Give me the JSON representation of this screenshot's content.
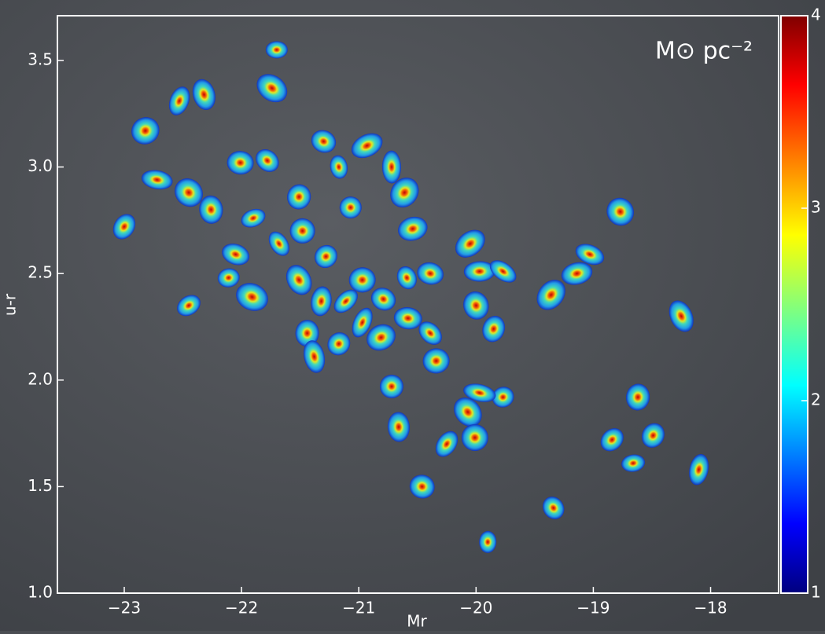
{
  "chart_data": {
    "type": "scatter",
    "annotation": "M⊙ pc⁻²",
    "x_label": "Mr",
    "y_label": "u-r",
    "x": [
      -21.7,
      -21.74,
      -22.32,
      -22.53,
      -22.82,
      -22.01,
      -21.78,
      -21.17,
      -21.3,
      -20.93,
      -22.72,
      -22.45,
      -22.26,
      -23.0,
      -21.9,
      -21.51,
      -21.07,
      -20.72,
      -20.61,
      -20.54,
      -22.05,
      -21.68,
      -21.48,
      -21.28,
      -22.11,
      -21.91,
      -21.51,
      -21.32,
      -21.11,
      -20.97,
      -20.79,
      -20.59,
      -20.39,
      -20.05,
      -19.97,
      -19.77,
      -20.0,
      -19.85,
      -22.45,
      -21.44,
      -21.17,
      -21.38,
      -20.97,
      -20.81,
      -20.58,
      -20.39,
      -20.34,
      -20.72,
      -19.77,
      -19.97,
      -20.07,
      -20.66,
      -20.25,
      -20.01,
      -20.46,
      -19.34,
      -19.9,
      -19.36,
      -19.14,
      -19.03,
      -18.77,
      -18.62,
      -18.84,
      -18.66,
      -18.49,
      -18.25,
      -18.1
    ],
    "values": [
      3.55,
      3.37,
      3.34,
      3.31,
      3.17,
      3.02,
      3.03,
      3.0,
      3.12,
      3.1,
      2.94,
      2.88,
      2.8,
      2.72,
      2.76,
      2.86,
      2.81,
      3.0,
      2.88,
      2.71,
      2.59,
      2.64,
      2.7,
      2.58,
      2.48,
      2.39,
      2.47,
      2.37,
      2.37,
      2.47,
      2.38,
      2.48,
      2.5,
      2.64,
      2.51,
      2.51,
      2.35,
      2.24,
      2.35,
      2.22,
      2.17,
      2.11,
      2.27,
      2.2,
      2.29,
      2.22,
      2.09,
      1.97,
      1.92,
      1.94,
      1.85,
      1.78,
      1.7,
      1.73,
      1.5,
      1.4,
      1.24,
      2.4,
      2.5,
      2.59,
      2.79,
      1.92,
      1.72,
      1.61,
      1.74,
      2.3,
      1.58
    ],
    "xlim": [
      -23.57,
      -17.42
    ],
    "ylim": [
      1.0,
      3.71
    ],
    "xticks": [
      {
        "value": -23,
        "label": "−23"
      },
      {
        "value": -22,
        "label": "−22"
      },
      {
        "value": -21,
        "label": "−21"
      },
      {
        "value": -20,
        "label": "−20"
      },
      {
        "value": -19,
        "label": "−19"
      },
      {
        "value": -18,
        "label": "−18"
      }
    ],
    "yticks": [
      {
        "value": 1.0,
        "label": "1.0"
      },
      {
        "value": 1.5,
        "label": "1.5"
      },
      {
        "value": 2.0,
        "label": "2.0"
      },
      2.5,
      {
        "value": 3.0,
        "label": "3.0"
      },
      3.5
    ],
    "colorbar": {
      "lim": [
        1,
        4
      ],
      "ticks": [
        1,
        2,
        3,
        4
      ]
    }
  }
}
